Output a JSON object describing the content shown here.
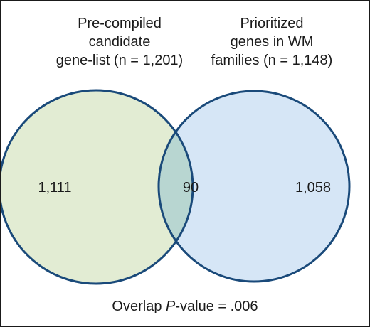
{
  "left_set": {
    "label_lines": [
      "Pre-compiled",
      "candidate",
      "gene-list (n = 1,201)"
    ],
    "only_count": "1,111",
    "fill": "#e2ecd3",
    "stroke": "#1a4a7a"
  },
  "right_set": {
    "label_lines": [
      "Prioritized",
      "genes in WM",
      "families (n = 1,148)"
    ],
    "only_count": "1,058",
    "fill": "#d6e6f6",
    "stroke": "#1a4a7a"
  },
  "overlap": {
    "count": "90",
    "fill": "#b8d6d1"
  },
  "footer": {
    "prefix": "Overlap ",
    "p": "P",
    "suffix": "-value = .006"
  }
}
